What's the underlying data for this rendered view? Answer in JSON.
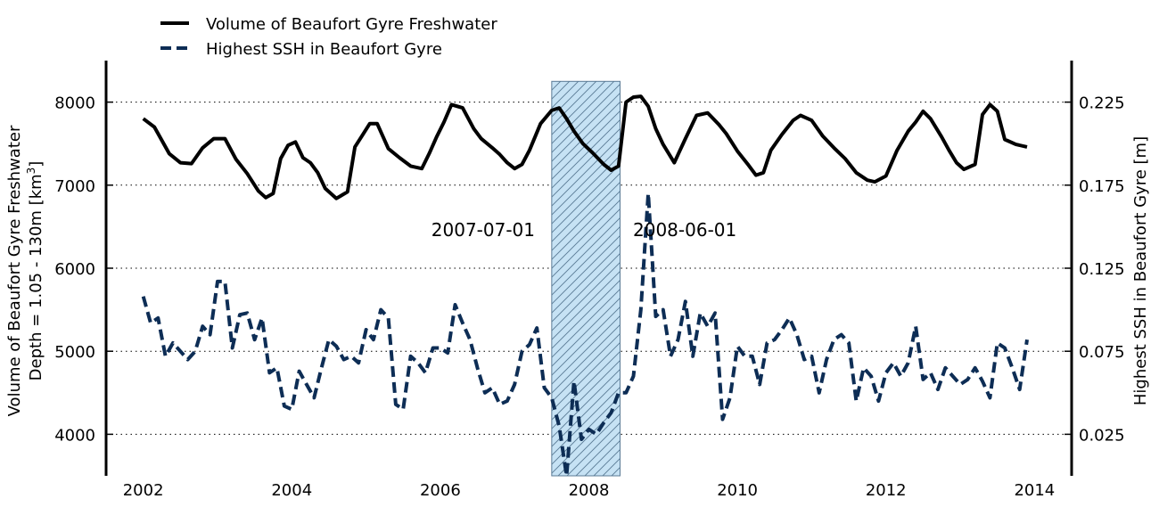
{
  "chart_data": {
    "type": "line",
    "legend": {
      "placement": "top-left",
      "entries": [
        "Volume of Beaufort Gyre Freshwater",
        "Highest SSH in Beaufort Gyre"
      ]
    },
    "x_axis": {
      "range": [
        2001.5,
        2014.5
      ],
      "ticks": [
        2002,
        2004,
        2006,
        2008,
        2010,
        2012,
        2014
      ],
      "tick_labels": [
        "2002",
        "2004",
        "2006",
        "2008",
        "2010",
        "2012",
        "2014"
      ]
    },
    "y_left": {
      "label_line1": "Volume of Beaufort Gyre Freshwater",
      "label_line2_prefix": "Depth = 1.05 - 130m [km",
      "label_line2_sup": "3",
      "label_line2_suffix": "]",
      "range": [
        3500,
        8500
      ],
      "ticks": [
        4000,
        5000,
        6000,
        7000,
        8000
      ],
      "tick_labels": [
        "4000",
        "5000",
        "6000",
        "7000",
        "8000"
      ]
    },
    "y_right": {
      "label": "Highest SSH in Beaufort Gyre [m]",
      "range": [
        0.0,
        0.25
      ],
      "ticks": [
        0.025,
        0.075,
        0.125,
        0.175,
        0.225
      ],
      "tick_labels": [
        "0.025",
        "0.075",
        "0.125",
        "0.175",
        "0.225"
      ]
    },
    "grid": "horizontal-dotted",
    "highlight": {
      "start": 2007.5,
      "end": 2008.42,
      "start_label": "2007-07-01",
      "end_label": "2008-06-01",
      "top_value": 8250,
      "fill": "#c6e2f4",
      "hatch": "#5a7b95"
    },
    "series": [
      {
        "name": "Volume of Beaufort Gyre Freshwater",
        "axis": "left",
        "style": "solid",
        "color": "#000000",
        "x": [
          2002.0,
          2002.15,
          2002.35,
          2002.5,
          2002.65,
          2002.8,
          2002.95,
          2003.1,
          2003.25,
          2003.4,
          2003.55,
          2003.65,
          2003.75,
          2003.85,
          2003.95,
          2004.05,
          2004.15,
          2004.25,
          2004.35,
          2004.45,
          2004.6,
          2004.75,
          2004.85,
          2004.95,
          2005.05,
          2005.15,
          2005.3,
          2005.45,
          2005.6,
          2005.75,
          2005.85,
          2005.95,
          2006.05,
          2006.15,
          2006.3,
          2006.45,
          2006.55,
          2006.7,
          2006.8,
          2006.9,
          2007.0,
          2007.1,
          2007.2,
          2007.35,
          2007.5,
          2007.6,
          2007.7,
          2007.8,
          2007.92,
          2008.05,
          2008.2,
          2008.3,
          2008.4,
          2008.5,
          2008.6,
          2008.7,
          2008.8,
          2008.9,
          2009.0,
          2009.15,
          2009.3,
          2009.45,
          2009.6,
          2009.75,
          2009.85,
          2010.0,
          2010.15,
          2010.25,
          2010.35,
          2010.45,
          2010.6,
          2010.75,
          2010.85,
          2011.0,
          2011.15,
          2011.3,
          2011.45,
          2011.6,
          2011.75,
          2011.85,
          2012.0,
          2012.15,
          2012.3,
          2012.4,
          2012.5,
          2012.6,
          2012.75,
          2012.85,
          2012.95,
          2013.05,
          2013.2,
          2013.3,
          2013.4,
          2013.5,
          2013.6,
          2013.75,
          2013.9
        ],
        "y": [
          7800,
          7700,
          7380,
          7270,
          7260,
          7450,
          7560,
          7560,
          7310,
          7140,
          6930,
          6850,
          6900,
          7320,
          7480,
          7520,
          7330,
          7270,
          7150,
          6960,
          6840,
          6920,
          7460,
          7600,
          7740,
          7740,
          7440,
          7330,
          7230,
          7200,
          7380,
          7580,
          7760,
          7970,
          7930,
          7680,
          7560,
          7450,
          7370,
          7270,
          7200,
          7250,
          7420,
          7740,
          7900,
          7930,
          7800,
          7650,
          7500,
          7390,
          7250,
          7180,
          7230,
          8000,
          8060,
          8070,
          7950,
          7680,
          7490,
          7270,
          7560,
          7840,
          7870,
          7730,
          7620,
          7410,
          7240,
          7120,
          7150,
          7420,
          7610,
          7780,
          7840,
          7780,
          7590,
          7450,
          7320,
          7150,
          7060,
          7040,
          7110,
          7420,
          7650,
          7760,
          7890,
          7800,
          7580,
          7420,
          7270,
          7190,
          7250,
          7850,
          7970,
          7890,
          7550,
          7490,
          7460
        ]
      },
      {
        "name": "Highest SSH in Beaufort Gyre",
        "axis": "right",
        "style": "dashed",
        "color": "#0d2d55",
        "x": [
          2002.0,
          2002.1,
          2002.2,
          2002.3,
          2002.4,
          2002.5,
          2002.6,
          2002.7,
          2002.8,
          2002.9,
          2003.0,
          2003.1,
          2003.2,
          2003.3,
          2003.4,
          2003.5,
          2003.6,
          2003.7,
          2003.8,
          2003.9,
          2004.0,
          2004.1,
          2004.2,
          2004.3,
          2004.4,
          2004.5,
          2004.6,
          2004.7,
          2004.8,
          2004.9,
          2005.0,
          2005.1,
          2005.2,
          2005.3,
          2005.4,
          2005.5,
          2005.6,
          2005.7,
          2005.8,
          2005.9,
          2006.0,
          2006.1,
          2006.2,
          2006.3,
          2006.4,
          2006.5,
          2006.6,
          2006.7,
          2006.8,
          2006.9,
          2007.0,
          2007.1,
          2007.2,
          2007.3,
          2007.4,
          2007.5,
          2007.6,
          2007.7,
          2007.8,
          2007.9,
          2008.0,
          2008.1,
          2008.2,
          2008.3,
          2008.4,
          2008.5,
          2008.6,
          2008.7,
          2008.8,
          2008.9,
          2009.0,
          2009.1,
          2009.2,
          2009.3,
          2009.4,
          2009.5,
          2009.6,
          2009.7,
          2009.8,
          2009.9,
          2010.0,
          2010.1,
          2010.2,
          2010.3,
          2010.4,
          2010.5,
          2010.6,
          2010.7,
          2010.8,
          2010.9,
          2011.0,
          2011.1,
          2011.2,
          2011.3,
          2011.4,
          2011.5,
          2011.6,
          2011.7,
          2011.8,
          2011.9,
          2012.0,
          2012.1,
          2012.2,
          2012.3,
          2012.4,
          2012.5,
          2012.6,
          2012.7,
          2012.8,
          2012.9,
          2013.0,
          2013.1,
          2013.2,
          2013.3,
          2013.4,
          2013.5,
          2013.6,
          2013.7,
          2013.8,
          2013.9
        ],
        "y": [
          0.108,
          0.092,
          0.095,
          0.072,
          0.08,
          0.075,
          0.07,
          0.075,
          0.09,
          0.085,
          0.117,
          0.117,
          0.077,
          0.097,
          0.098,
          0.082,
          0.095,
          0.062,
          0.065,
          0.042,
          0.04,
          0.063,
          0.055,
          0.047,
          0.065,
          0.082,
          0.078,
          0.07,
          0.072,
          0.068,
          0.088,
          0.082,
          0.1,
          0.095,
          0.043,
          0.04,
          0.072,
          0.068,
          0.062,
          0.077,
          0.077,
          0.074,
          0.103,
          0.092,
          0.082,
          0.065,
          0.05,
          0.053,
          0.043,
          0.045,
          0.055,
          0.075,
          0.079,
          0.089,
          0.053,
          0.047,
          0.03,
          0.0,
          0.057,
          0.022,
          0.028,
          0.025,
          0.032,
          0.038,
          0.05,
          0.05,
          0.06,
          0.1,
          0.17,
          0.096,
          0.1,
          0.072,
          0.082,
          0.105,
          0.072,
          0.098,
          0.09,
          0.098,
          0.034,
          0.047,
          0.078,
          0.072,
          0.072,
          0.055,
          0.08,
          0.082,
          0.088,
          0.095,
          0.085,
          0.07,
          0.072,
          0.05,
          0.07,
          0.082,
          0.085,
          0.08,
          0.045,
          0.065,
          0.06,
          0.045,
          0.062,
          0.068,
          0.06,
          0.068,
          0.09,
          0.058,
          0.062,
          0.052,
          0.065,
          0.06,
          0.055,
          0.058,
          0.065,
          0.057,
          0.047,
          0.08,
          0.077,
          0.065,
          0.052,
          0.082
        ]
      }
    ]
  }
}
